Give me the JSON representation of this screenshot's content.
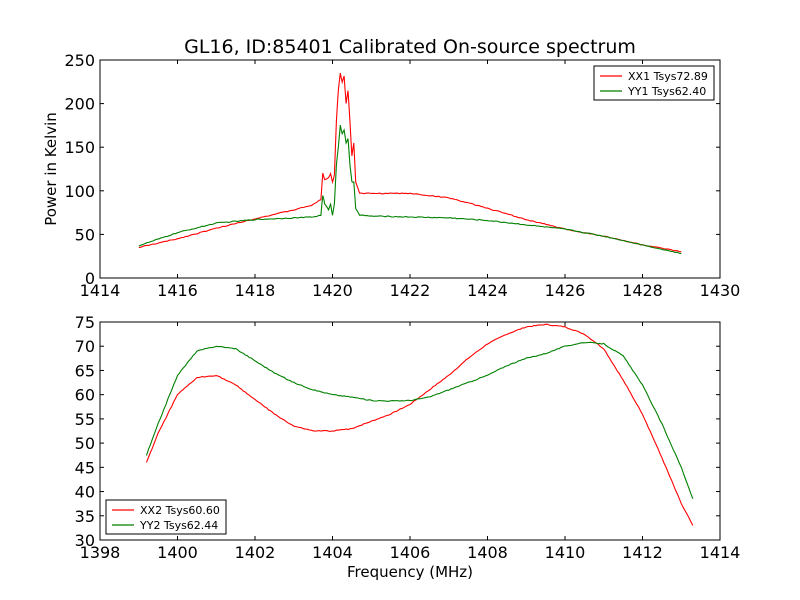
{
  "chart_data": [
    {
      "type": "line",
      "title": "GL16, ID:85401 Calibrated On-source spectrum",
      "xlabel": "",
      "ylabel": "Power in Kelvin",
      "xlim": [
        1414,
        1430
      ],
      "ylim": [
        0,
        250
      ],
      "xticks": [
        1414,
        1416,
        1418,
        1420,
        1422,
        1424,
        1426,
        1428,
        1430
      ],
      "yticks": [
        0,
        50,
        100,
        150,
        200,
        250
      ],
      "legend_position": "top-right",
      "series": [
        {
          "name": "XX1 Tsys72.89",
          "color": "#ff0000",
          "points": [
            [
              1415,
              35
            ],
            [
              1416,
              45
            ],
            [
              1417,
              57
            ],
            [
              1418,
              68
            ],
            [
              1419,
              78
            ],
            [
              1419.5,
              84
            ],
            [
              1419.7,
              90
            ],
            [
              1419.75,
              120
            ],
            [
              1419.8,
              113
            ],
            [
              1419.9,
              115
            ],
            [
              1419.95,
              120
            ],
            [
              1420.0,
              110
            ],
            [
              1420.05,
              118
            ],
            [
              1420.1,
              180
            ],
            [
              1420.15,
              215
            ],
            [
              1420.2,
              235
            ],
            [
              1420.25,
              225
            ],
            [
              1420.3,
              232
            ],
            [
              1420.35,
              200
            ],
            [
              1420.4,
              215
            ],
            [
              1420.45,
              180
            ],
            [
              1420.5,
              140
            ],
            [
              1420.55,
              155
            ],
            [
              1420.6,
              110
            ],
            [
              1420.7,
              97
            ],
            [
              1421,
              97
            ],
            [
              1422,
              97
            ],
            [
              1423,
              92
            ],
            [
              1424,
              80
            ],
            [
              1425,
              67
            ],
            [
              1426,
              56
            ],
            [
              1427,
              48
            ],
            [
              1428,
              38
            ],
            [
              1429,
              30
            ]
          ]
        },
        {
          "name": "YY1 Tsys62.40",
          "color": "#008000",
          "points": [
            [
              1415,
              37
            ],
            [
              1416,
              52
            ],
            [
              1417,
              63
            ],
            [
              1418,
              67
            ],
            [
              1419,
              69
            ],
            [
              1419.5,
              70
            ],
            [
              1419.7,
              72
            ],
            [
              1419.75,
              95
            ],
            [
              1419.8,
              85
            ],
            [
              1419.9,
              78
            ],
            [
              1419.95,
              85
            ],
            [
              1420.0,
              72
            ],
            [
              1420.05,
              85
            ],
            [
              1420.1,
              130
            ],
            [
              1420.15,
              150
            ],
            [
              1420.2,
              175
            ],
            [
              1420.25,
              165
            ],
            [
              1420.3,
              170
            ],
            [
              1420.35,
              155
            ],
            [
              1420.4,
              160
            ],
            [
              1420.45,
              130
            ],
            [
              1420.5,
              110
            ],
            [
              1420.55,
              110
            ],
            [
              1420.6,
              80
            ],
            [
              1420.7,
              72
            ],
            [
              1421,
              71
            ],
            [
              1422,
              70
            ],
            [
              1423,
              69
            ],
            [
              1424,
              66
            ],
            [
              1425,
              61
            ],
            [
              1426,
              56
            ],
            [
              1427,
              48
            ],
            [
              1428,
              38
            ],
            [
              1429,
              28
            ]
          ]
        }
      ]
    },
    {
      "type": "line",
      "title": "",
      "xlabel": "Frequency (MHz)",
      "ylabel": "",
      "xlim": [
        1398,
        1414
      ],
      "ylim": [
        30,
        75
      ],
      "xticks": [
        1398,
        1400,
        1402,
        1404,
        1406,
        1408,
        1410,
        1412,
        1414
      ],
      "yticks": [
        30,
        35,
        40,
        45,
        50,
        55,
        60,
        65,
        70,
        75
      ],
      "legend_position": "bottom-left",
      "series": [
        {
          "name": "XX2 Tsys60.60",
          "color": "#ff0000",
          "points": [
            [
              1399.2,
              46
            ],
            [
              1399.5,
              52
            ],
            [
              1400,
              60
            ],
            [
              1400.5,
              63.5
            ],
            [
              1401,
              64
            ],
            [
              1401.5,
              62
            ],
            [
              1402,
              59
            ],
            [
              1402.5,
              56
            ],
            [
              1403,
              53.5
            ],
            [
              1403.5,
              52.5
            ],
            [
              1404,
              52.5
            ],
            [
              1404.5,
              53
            ],
            [
              1405,
              54.5
            ],
            [
              1405.5,
              56
            ],
            [
              1406,
              58
            ],
            [
              1406.5,
              61
            ],
            [
              1407,
              64
            ],
            [
              1407.5,
              67.5
            ],
            [
              1408,
              70.5
            ],
            [
              1408.5,
              72.5
            ],
            [
              1409,
              74
            ],
            [
              1409.5,
              74.5
            ],
            [
              1410,
              74
            ],
            [
              1410.5,
              72.5
            ],
            [
              1411,
              69.5
            ],
            [
              1411.5,
              63
            ],
            [
              1412,
              56
            ],
            [
              1412.5,
              47
            ],
            [
              1413,
              37.5
            ],
            [
              1413.3,
              33
            ]
          ]
        },
        {
          "name": "YY2 Tsys62.44",
          "color": "#008000",
          "points": [
            [
              1399.2,
              47.5
            ],
            [
              1399.5,
              54
            ],
            [
              1400,
              64
            ],
            [
              1400.5,
              69
            ],
            [
              1401,
              70
            ],
            [
              1401.5,
              69.5
            ],
            [
              1402,
              67
            ],
            [
              1402.5,
              64.5
            ],
            [
              1403,
              62.5
            ],
            [
              1403.5,
              61
            ],
            [
              1404,
              60
            ],
            [
              1404.5,
              59.5
            ],
            [
              1405,
              58.8
            ],
            [
              1405.5,
              58.7
            ],
            [
              1406,
              58.8
            ],
            [
              1406.5,
              59.5
            ],
            [
              1407,
              61
            ],
            [
              1407.5,
              62.5
            ],
            [
              1408,
              64
            ],
            [
              1408.5,
              66
            ],
            [
              1409,
              67.5
            ],
            [
              1409.5,
              68.5
            ],
            [
              1410,
              70
            ],
            [
              1410.5,
              70.8
            ],
            [
              1411,
              70.5
            ],
            [
              1411.5,
              68
            ],
            [
              1412,
              62
            ],
            [
              1412.5,
              54
            ],
            [
              1413,
              45
            ],
            [
              1413.3,
              38.5
            ]
          ]
        }
      ]
    }
  ]
}
